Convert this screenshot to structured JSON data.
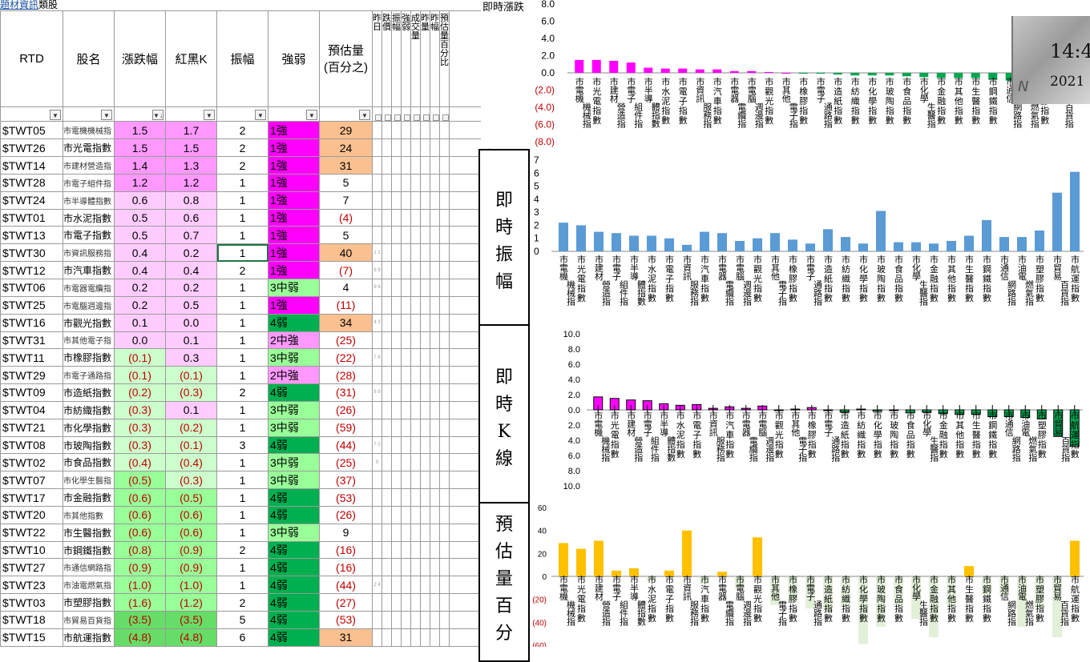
{
  "header": {
    "link_text": "題材資訊",
    "tail_text": "類股",
    "live_label": "即時漲跌"
  },
  "columns": {
    "rtd": "RTD",
    "name": "股名",
    "change": "漲跌幅",
    "kline": "紅黑K",
    "amplitude": "振幅",
    "strength": "強弱",
    "volume": "預估量",
    "volume2": "(百分之)",
    "vert1": "昨日",
    "vert2": "跌價",
    "vert3": "振幅",
    "vert4": "強弱",
    "vert5": "成交量",
    "vert6": "昨量",
    "vert7": "昨幅",
    "vert8": "預估量百分比"
  },
  "rows": [
    {
      "code": "$TWT05",
      "name": "市電機機械指",
      "change": "1.5",
      "kline": "1.7",
      "amp": "2",
      "strength": "1強",
      "vol": "29",
      "small": true
    },
    {
      "code": "$TWT26",
      "name": "市光電指數",
      "change": "1.5",
      "kline": "1.5",
      "amp": "2",
      "strength": "1強",
      "vol": "24",
      "small": false
    },
    {
      "code": "$TWT14",
      "name": "市建材營造指",
      "change": "1.4",
      "kline": "1.3",
      "amp": "2",
      "strength": "1強",
      "vol": "31",
      "small": true
    },
    {
      "code": "$TWT28",
      "name": "市電子組件指",
      "change": "1.2",
      "kline": "1.2",
      "amp": "1",
      "strength": "1強",
      "vol": "5",
      "small": true
    },
    {
      "code": "$TWT24",
      "name": "市半導體指數",
      "change": "0.6",
      "kline": "0.8",
      "amp": "1",
      "strength": "1強",
      "vol": "7",
      "small": true
    },
    {
      "code": "$TWT01",
      "name": "市水泥指數",
      "change": "0.5",
      "kline": "0.6",
      "amp": "1",
      "strength": "1強",
      "vol": "(4)",
      "small": false
    },
    {
      "code": "$TWT13",
      "name": "市電子指數",
      "change": "0.5",
      "kline": "0.7",
      "amp": "1",
      "strength": "1強",
      "vol": "5",
      "small": false
    },
    {
      "code": "$TWT30",
      "name": "市資訊服務指",
      "change": "0.4",
      "kline": "0.2",
      "amp": "1",
      "strength": "1強",
      "vol": "40",
      "small": true
    },
    {
      "code": "$TWT12",
      "name": "市汽車指數",
      "change": "0.4",
      "kline": "0.4",
      "amp": "2",
      "strength": "1強",
      "vol": "(7)",
      "small": false
    },
    {
      "code": "$TWT06",
      "name": "市電器電纜指",
      "change": "0.2",
      "kline": "0.2",
      "amp": "1",
      "strength": "3中弱",
      "vol": "4",
      "small": true
    },
    {
      "code": "$TWT25",
      "name": "市電腦週邊指",
      "change": "0.2",
      "kline": "0.5",
      "amp": "1",
      "strength": "1強",
      "vol": "(11)",
      "small": true
    },
    {
      "code": "$TWT16",
      "name": "市觀光指數",
      "change": "0.1",
      "kline": "0.0",
      "amp": "1",
      "strength": "4弱",
      "vol": "34",
      "small": false
    },
    {
      "code": "$TWT31",
      "name": "市其他電子指",
      "change": "0.0",
      "kline": "0.1",
      "amp": "1",
      "strength": "2中強",
      "vol": "(25)",
      "small": true
    },
    {
      "code": "$TWT11",
      "name": "市橡膠指數",
      "change": "(0.1)",
      "kline": "0.3",
      "amp": "1",
      "strength": "3中弱",
      "vol": "(22)",
      "small": false
    },
    {
      "code": "$TWT29",
      "name": "市電子通路指",
      "change": "(0.1)",
      "kline": "(0.1)",
      "amp": "1",
      "strength": "2中強",
      "vol": "(28)",
      "small": true
    },
    {
      "code": "$TWT09",
      "name": "市造紙指數",
      "change": "(0.2)",
      "kline": "(0.3)",
      "amp": "2",
      "strength": "4弱",
      "vol": "(31)",
      "small": false
    },
    {
      "code": "$TWT04",
      "name": "市紡織指數",
      "change": "(0.3)",
      "kline": "0.1",
      "amp": "1",
      "strength": "3中弱",
      "vol": "(26)",
      "small": false
    },
    {
      "code": "$TWT21",
      "name": "市化學指數",
      "change": "(0.3)",
      "kline": "(0.2)",
      "amp": "1",
      "strength": "3中弱",
      "vol": "(59)",
      "small": false
    },
    {
      "code": "$TWT08",
      "name": "市玻陶指數",
      "change": "(0.3)",
      "kline": "(0.1)",
      "amp": "3",
      "strength": "4弱",
      "vol": "(44)",
      "small": false
    },
    {
      "code": "$TWT02",
      "name": "市食品指數",
      "change": "(0.4)",
      "kline": "(0.4)",
      "amp": "1",
      "strength": "3中弱",
      "vol": "(25)",
      "small": false
    },
    {
      "code": "$TWT07",
      "name": "市化學生醫指",
      "change": "(0.5)",
      "kline": "(0.3)",
      "amp": "1",
      "strength": "3中弱",
      "vol": "(37)",
      "small": true
    },
    {
      "code": "$TWT17",
      "name": "市金融指數",
      "change": "(0.6)",
      "kline": "(0.5)",
      "amp": "1",
      "strength": "4弱",
      "vol": "(53)",
      "small": false
    },
    {
      "code": "$TWT20",
      "name": "市其他指數",
      "change": "(0.6)",
      "kline": "(0.6)",
      "amp": "1",
      "strength": "4弱",
      "vol": "(26)",
      "small": true
    },
    {
      "code": "$TWT22",
      "name": "市生醫指數",
      "change": "(0.6)",
      "kline": "(0.6)",
      "amp": "1",
      "strength": "3中弱",
      "vol": "9",
      "small": false
    },
    {
      "code": "$TWT10",
      "name": "市鋼鐵指數",
      "change": "(0.8)",
      "kline": "(0.9)",
      "amp": "2",
      "strength": "4弱",
      "vol": "(16)",
      "small": false
    },
    {
      "code": "$TWT27",
      "name": "市通信網路指",
      "change": "(0.9)",
      "kline": "(0.9)",
      "amp": "1",
      "strength": "4弱",
      "vol": "(16)",
      "small": true
    },
    {
      "code": "$TWT23",
      "name": "市油電燃氣指",
      "change": "(1.0)",
      "kline": "(1.0)",
      "amp": "1",
      "strength": "4弱",
      "vol": "(44)",
      "small": true
    },
    {
      "code": "$TWT03",
      "name": "市塑膠指數",
      "change": "(1.6)",
      "kline": "(1.2)",
      "amp": "2",
      "strength": "4弱",
      "vol": "(27)",
      "small": false
    },
    {
      "code": "$TWT18",
      "name": "市貿易百貨指",
      "change": "(3.5)",
      "kline": "(3.5)",
      "amp": "5",
      "strength": "4弱",
      "vol": "(53)",
      "small": true
    },
    {
      "code": "$TWT15",
      "name": "市航運指數",
      "change": "(4.8)",
      "kline": "(4.8)",
      "amp": "6",
      "strength": "4弱",
      "vol": "31",
      "small": false
    }
  ],
  "tiny_marks": [
    "",
    "",
    "",
    "",
    "",
    "",
    "",
    "1 1",
    "8 9",
    "9 8",
    "",
    "4 3",
    "",
    "7 8",
    "",
    "6 9",
    "",
    "",
    "7 0",
    "9",
    "",
    "",
    "",
    "",
    "",
    "",
    "2 4",
    "",
    "",
    ""
  ],
  "sections": {
    "amplitude": "即時振幅",
    "kline": "即時K線",
    "volume": "預估量百分"
  },
  "colors": {
    "magenta": "#ff00ff",
    "pink_bar": "#ff00ff",
    "light_pink": "#ffccff",
    "mid_pink": "#ff99ff",
    "light_green": "#99ff99",
    "green": "#00b050",
    "dark_green": "#00a651",
    "orange": "#fac090",
    "blue": "#5b9bd5",
    "gold": "#ffc000",
    "negative": "#c00000"
  },
  "clock": {
    "time": "14:4",
    "date": "2021",
    "mark": "N"
  },
  "chart_data": [
    {
      "type": "bar",
      "title": "",
      "categories": [
        "市電機機械指",
        "市光電指數",
        "市建材營造指",
        "市電子組件指",
        "市半導體指數",
        "市水泥指數",
        "市電子指數",
        "市資訊服務指",
        "市汽車指數",
        "市電器電纜指",
        "市電腦週邊指",
        "市觀光指數",
        "市其他電子指",
        "市橡膠指數",
        "市電子通路指",
        "市造紙指數",
        "市紡織指數",
        "市化學指數",
        "市玻陶指數",
        "市食品指數",
        "市化學生醫指",
        "市金融指數",
        "市其他指數",
        "市生醫指數",
        "市鋼鐵指數",
        "市通信網路指",
        "市油電燃氣指",
        "市塑膠指數",
        "市貿易百貨指"
      ],
      "values": [
        1.5,
        1.5,
        1.4,
        1.2,
        0.6,
        0.5,
        0.5,
        0.4,
        0.4,
        0.2,
        0.2,
        0.1,
        0.0,
        -0.1,
        -0.1,
        -0.2,
        -0.3,
        -0.3,
        -0.3,
        -0.4,
        -0.5,
        -0.6,
        -0.6,
        -0.6,
        -0.8,
        -0.9,
        -1.0,
        -1.6,
        -3.5
      ],
      "yticks": [
        "8.0",
        "6.0",
        "4.0",
        "2.0",
        "0.0",
        "(2.0)",
        "(4.0)",
        "(6.0)",
        "(8.0)"
      ],
      "ylim": [
        -8,
        8
      ]
    },
    {
      "type": "bar",
      "title": "",
      "categories": [
        "市電機機械指",
        "市光電指數",
        "市建材營造指",
        "市電子組件指",
        "市半導體指數",
        "市水泥指數",
        "市電子指數",
        "市資訊服務指",
        "市汽車指數",
        "市電器電纜指",
        "市電腦週邊指",
        "市觀光指數",
        "市其他電子指",
        "市橡膠指數",
        "市電子通路指",
        "市造紙指數",
        "市紡織指數",
        "市化學指數",
        "市玻陶指數",
        "市食品指數",
        "市化學生醫指",
        "市金融指數",
        "市其他指數",
        "市生醫指數",
        "市鋼鐵指數",
        "市通信網路指",
        "市油電燃氣指",
        "市塑膠指數",
        "市貿易百貨指",
        "市航運指數"
      ],
      "values": [
        2.2,
        2.0,
        1.5,
        1.4,
        1.2,
        1.2,
        1.0,
        0.5,
        1.5,
        1.4,
        0.8,
        1.0,
        1.4,
        0.9,
        0.6,
        1.7,
        1.1,
        0.6,
        3.1,
        0.7,
        0.7,
        0.6,
        0.8,
        1.2,
        2.4,
        1.1,
        1.1,
        1.6,
        4.5,
        6.1
      ],
      "yticks": [
        "7",
        "6",
        "5",
        "4",
        "3",
        "2",
        "1",
        "0"
      ],
      "ylim": [
        0,
        7
      ]
    },
    {
      "type": "bar",
      "title": "",
      "categories": [
        "市電機機械指",
        "市光電指數",
        "市建材營造指",
        "市電子組件指",
        "市半導體指數",
        "市水泥指數",
        "市電子指數",
        "市資訊服務指",
        "市汽車指數",
        "市電器電纜指",
        "市電腦週邊指",
        "市觀光指數",
        "市其他電子指",
        "市橡膠指數",
        "市電子通路指",
        "市造紙指數",
        "市紡織指數",
        "市化學指數",
        "市玻陶指數",
        "市食品指數",
        "市化學生醫指",
        "市金融指數",
        "市其他指數",
        "市生醫指數",
        "市鋼鐵指數",
        "市通信網路指",
        "市油電燃氣指",
        "市塑膠指數",
        "市貿易百貨指",
        "市航運指數"
      ],
      "values": [
        1.7,
        1.5,
        1.3,
        1.2,
        0.8,
        0.6,
        0.7,
        0.2,
        0.4,
        0.2,
        0.5,
        0.0,
        0.1,
        0.3,
        -0.1,
        -0.3,
        0.1,
        -0.2,
        -0.1,
        -0.4,
        -0.3,
        -0.5,
        -0.6,
        -0.6,
        -0.9,
        -0.9,
        -1.0,
        -1.2,
        -3.5,
        -4.8
      ],
      "yticks": [
        "10.0",
        "8.0",
        "6.0",
        "4.0",
        "2.0",
        "0.0",
        "2.0",
        "4.0",
        "6.0",
        "8.0",
        "10.0"
      ],
      "ylim": [
        -10,
        10
      ]
    },
    {
      "type": "bar",
      "title": "",
      "categories": [
        "市電機機械指",
        "市光電指數",
        "市建材營造指",
        "市電子組件指",
        "市半導體指數",
        "市水泥指數",
        "市電子指數",
        "市資訊服務指",
        "市汽車指數",
        "市電器電纜指",
        "市電腦週邊指",
        "市觀光指數",
        "市其他電子指",
        "市橡膠指數",
        "市電子通路指",
        "市造紙指數",
        "市紡織指數",
        "市化學指數",
        "市玻陶指數",
        "市食品指數",
        "市化學生醫指",
        "市金融指數",
        "市其他指數",
        "市生醫指數",
        "市鋼鐵指數",
        "市通信網路指",
        "市油電燃氣指",
        "市塑膠指數",
        "市貿易百貨指",
        "市航運指數"
      ],
      "values": [
        29,
        24,
        31,
        5,
        7,
        -4,
        5,
        40,
        -7,
        4,
        -11,
        34,
        -25,
        -22,
        -28,
        -31,
        -26,
        -59,
        -44,
        -25,
        -37,
        -53,
        -26,
        9,
        -16,
        -16,
        -44,
        -27,
        -53,
        31
      ],
      "yticks": [
        "60",
        "40",
        "20",
        "0",
        "(20)",
        "(40)",
        "(60)"
      ],
      "ylim": [
        -60,
        60
      ]
    }
  ]
}
